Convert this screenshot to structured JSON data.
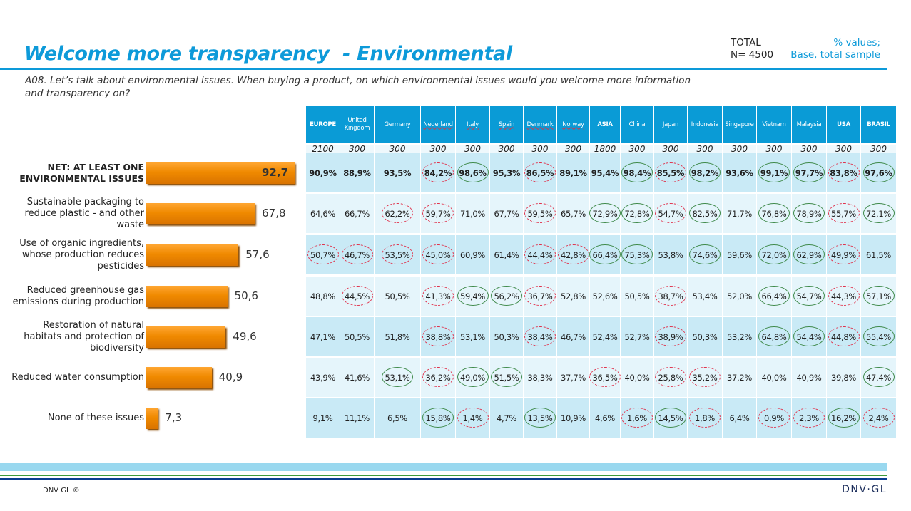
{
  "header": {
    "title": "Welcome more transparency  - Environmental",
    "total_label": "TOTAL",
    "n_label": "N= 4500",
    "pct_line1": "% values;",
    "pct_line2": "Base, total sample"
  },
  "question": "A08. Let’s talk about environmental issues. When buying a product, on which environmental issues would you welcome more information and transparency on?",
  "footer": {
    "copyright": "DNV GL ©",
    "logo": "DNV·GL"
  },
  "colors": {
    "accent": "#0d9ad9",
    "bar": "#f08a00",
    "significant_high": "#3f8a4a",
    "significant_low": "#e0304a"
  },
  "chart_data": [
    {
      "type": "bar",
      "orientation": "horizontal",
      "categories": [
        "NET: AT LEAST ONE ENVIRONMENTAL ISSUES",
        "Sustainable packaging to reduce plastic - and other waste",
        "Use of organic ingredients, whose production reduces pesticides",
        "Reduced greenhouse gas emissions during production",
        "Restoration of natural habitats and protection of biodiversity",
        "Reduced water consumption",
        "None of these issues"
      ],
      "values": [
        92.7,
        67.8,
        57.6,
        50.6,
        49.6,
        40.9,
        7.3
      ],
      "value_labels": [
        "92,7",
        "67,8",
        "57,6",
        "50,6",
        "49,6",
        "40,9",
        "7,3"
      ]
    },
    {
      "type": "table",
      "columns": [
        {
          "name": "EUROPE",
          "base": "2100",
          "region": true
        },
        {
          "name": "United Kingdom",
          "base": "300"
        },
        {
          "name": "Germany",
          "base": "300"
        },
        {
          "name": "Nederland",
          "base": "300"
        },
        {
          "name": "Italy",
          "base": "300"
        },
        {
          "name": "Spain",
          "base": "300"
        },
        {
          "name": "Denmark",
          "base": "300"
        },
        {
          "name": "Norway",
          "base": "300"
        },
        {
          "name": "ASIA",
          "base": "1800",
          "region": true
        },
        {
          "name": "China",
          "base": "300"
        },
        {
          "name": "Japan",
          "base": "300"
        },
        {
          "name": "Indonesia",
          "base": "300"
        },
        {
          "name": "Singapore",
          "base": "300"
        },
        {
          "name": "Vietnam",
          "base": "300"
        },
        {
          "name": "Malaysia",
          "base": "300"
        },
        {
          "name": "USA",
          "base": "300",
          "region": true
        },
        {
          "name": "BRASIL",
          "base": "300",
          "region": true
        }
      ],
      "rows": [
        {
          "values": [
            "90,9%",
            "88,9%",
            "93,5%",
            "84,2%",
            "98,6%",
            "95,3%",
            "86,5%",
            "89,1%",
            "95,4%",
            "98,4%",
            "85,5%",
            "98,2%",
            "93,6%",
            "99,1%",
            "97,7%",
            "83,8%",
            "97,6%"
          ],
          "significance": [
            "",
            "",
            "",
            "low",
            "high",
            "",
            "low",
            "",
            "",
            "high",
            "low",
            "high",
            "",
            "high",
            "high",
            "low",
            "high"
          ]
        },
        {
          "values": [
            "64,6%",
            "66,7%",
            "62,2%",
            "59,7%",
            "71,0%",
            "67,7%",
            "59,5%",
            "65,7%",
            "72,9%",
            "72,8%",
            "54,7%",
            "82,5%",
            "71,7%",
            "76,8%",
            "78,9%",
            "55,7%",
            "72,1%"
          ],
          "significance": [
            "",
            "",
            "low",
            "low",
            "",
            "",
            "low",
            "",
            "high",
            "high",
            "low",
            "high",
            "",
            "high",
            "high",
            "low",
            "high"
          ]
        },
        {
          "values": [
            "50,7%",
            "46,7%",
            "53,5%",
            "45,0%",
            "60,9%",
            "61,4%",
            "44,4%",
            "42,8%",
            "66,4%",
            "75,3%",
            "53,8%",
            "74,6%",
            "59,6%",
            "72,0%",
            "62,9%",
            "49,9%",
            "61,5%"
          ],
          "significance": [
            "low",
            "low",
            "low",
            "low",
            "",
            "",
            "low",
            "low",
            "high",
            "high",
            "",
            "high",
            "",
            "high",
            "high",
            "low",
            ""
          ]
        },
        {
          "values": [
            "48,8%",
            "44,5%",
            "50,5%",
            "41,3%",
            "59,4%",
            "56,2%",
            "36,7%",
            "52,8%",
            "52,6%",
            "50,5%",
            "38,7%",
            "53,4%",
            "52,0%",
            "66,4%",
            "54,7%",
            "44,3%",
            "57,1%"
          ],
          "significance": [
            "",
            "low",
            "",
            "low",
            "high",
            "high",
            "low",
            "",
            "",
            "",
            "low",
            "",
            "",
            "high",
            "high",
            "low",
            "high"
          ]
        },
        {
          "values": [
            "47,1%",
            "50,5%",
            "51,8%",
            "38,8%",
            "53,1%",
            "50,3%",
            "38,4%",
            "46,7%",
            "52,4%",
            "52,7%",
            "38,9%",
            "50,3%",
            "53,2%",
            "64,8%",
            "54,4%",
            "44,8%",
            "55,4%"
          ],
          "significance": [
            "",
            "",
            "",
            "low",
            "",
            "",
            "low",
            "",
            "",
            "",
            "low",
            "",
            "",
            "high",
            "high",
            "low",
            "high"
          ]
        },
        {
          "values": [
            "43,9%",
            "41,6%",
            "53,1%",
            "36,2%",
            "49,0%",
            "51,5%",
            "38,3%",
            "37,7%",
            "36,5%",
            "40,0%",
            "25,8%",
            "35,2%",
            "37,2%",
            "40,0%",
            "40,9%",
            "39,8%",
            "47,4%"
          ],
          "significance": [
            "",
            "",
            "high",
            "low",
            "high",
            "high",
            "",
            "",
            "low",
            "",
            "low",
            "low",
            "",
            "",
            "",
            "",
            "high"
          ]
        },
        {
          "values": [
            "9,1%",
            "11,1%",
            "6,5%",
            "15,8%",
            "1,4%",
            "4,7%",
            "13,5%",
            "10,9%",
            "4,6%",
            "1,6%",
            "14,5%",
            "1,8%",
            "6,4%",
            "0,9%",
            "2,3%",
            "16,2%",
            "2,4%"
          ],
          "significance": [
            "",
            "",
            "",
            "high",
            "low",
            "",
            "high",
            "",
            "",
            "low",
            "high",
            "low",
            "",
            "low",
            "low",
            "high",
            "low"
          ]
        }
      ]
    }
  ]
}
